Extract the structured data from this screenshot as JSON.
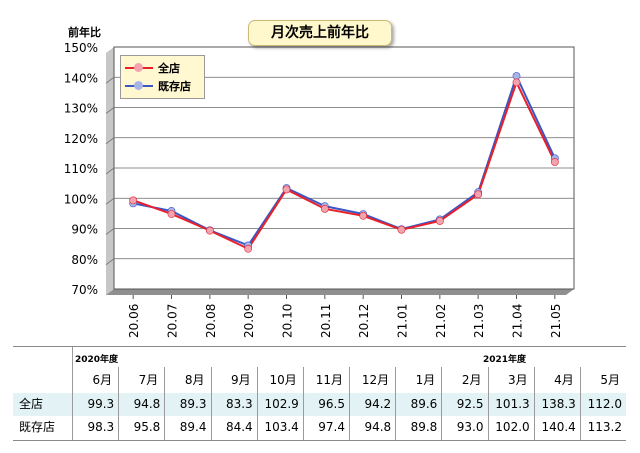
{
  "chart_data": {
    "type": "line",
    "title": "月次売上前年比",
    "ylabel": "前年比",
    "y_ticks": [
      "150%",
      "140%",
      "130%",
      "120%",
      "110%",
      "100%",
      "90%",
      "80%",
      "70%"
    ],
    "ylim": [
      70,
      150
    ],
    "categories": [
      "20.06",
      "20.07",
      "20.08",
      "20.09",
      "20.10",
      "20.11",
      "20.12",
      "21.01",
      "21.02",
      "21.03",
      "21.04",
      "21.05"
    ],
    "series": [
      {
        "name": "全店",
        "color": "#e8202a",
        "marker_color": "#f3a3ae",
        "values": [
          99.3,
          94.8,
          89.3,
          83.3,
          102.9,
          96.5,
          94.2,
          89.6,
          92.5,
          101.3,
          138.3,
          112.0
        ]
      },
      {
        "name": "既存店",
        "color": "#3b57c6",
        "marker_color": "#a8b3e8",
        "values": [
          98.3,
          95.8,
          89.4,
          84.4,
          103.4,
          97.4,
          94.8,
          89.8,
          93.0,
          102.0,
          140.4,
          113.2
        ]
      }
    ],
    "grid": true,
    "legend_position": "top-left"
  },
  "table": {
    "fiscal_labels": [
      "2020年度",
      "2021年度"
    ],
    "months": [
      "6月",
      "7月",
      "8月",
      "9月",
      "10月",
      "11月",
      "12月",
      "1月",
      "2月",
      "3月",
      "4月",
      "5月"
    ],
    "rows": [
      {
        "label": "全店",
        "values": [
          "99.3",
          "94.8",
          "89.3",
          "83.3",
          "102.9",
          "96.5",
          "94.2",
          "89.6",
          "92.5",
          "101.3",
          "138.3",
          "112.0"
        ],
        "bg": "#e3f3f5"
      },
      {
        "label": "既存店",
        "values": [
          "98.3",
          "95.8",
          "89.4",
          "84.4",
          "103.4",
          "97.4",
          "94.8",
          "89.8",
          "93.0",
          "102.0",
          "140.4",
          "113.2"
        ],
        "bg": "#ffffff"
      }
    ]
  }
}
